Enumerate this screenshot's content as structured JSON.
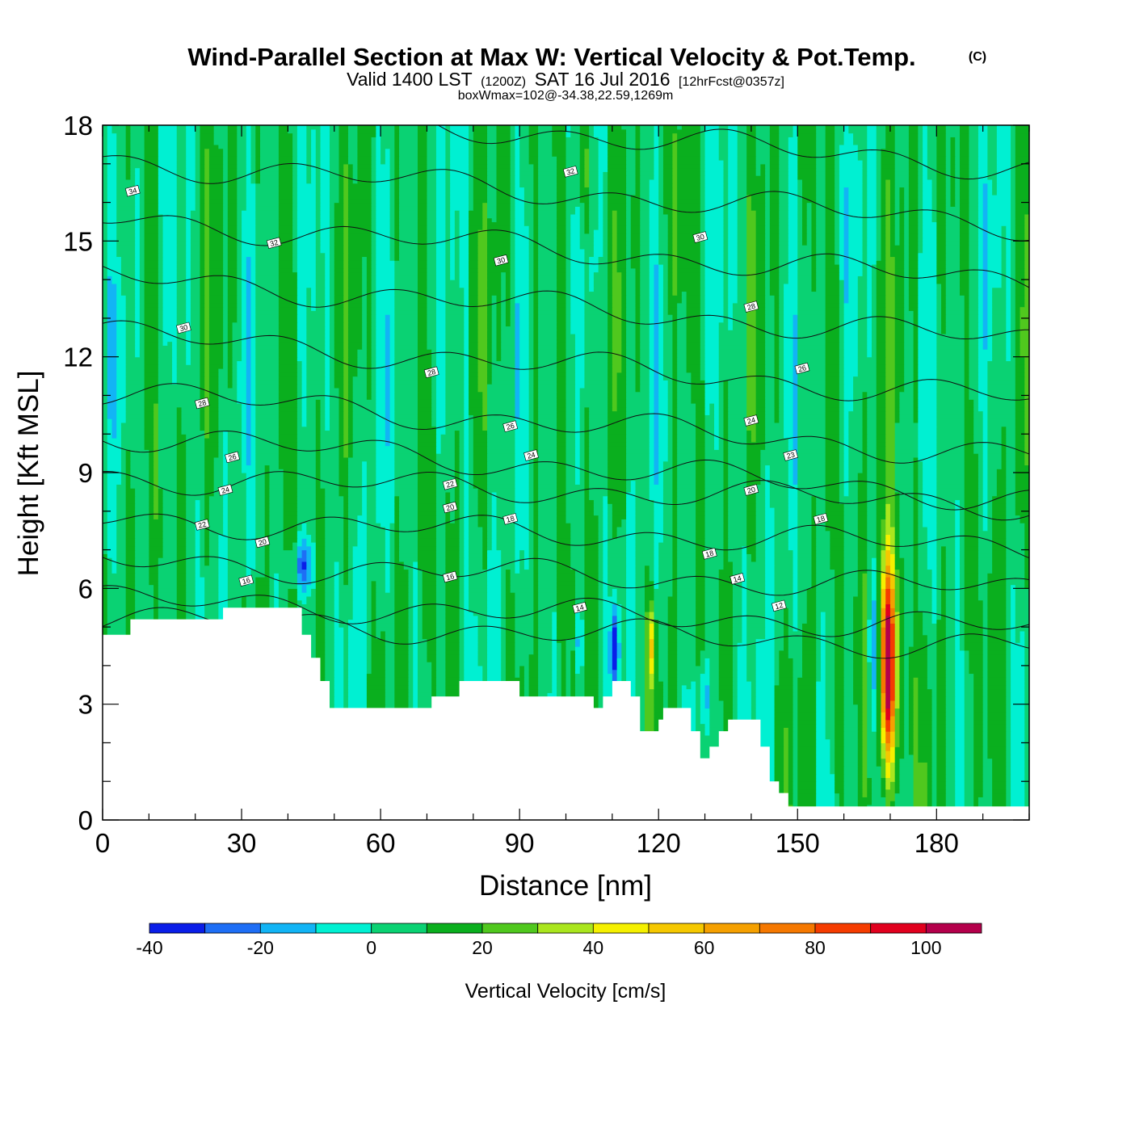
{
  "chart_data": {
    "type": "heatmap",
    "title": "Wind-Parallel Section at Max W: Vertical Velocity & Pot.Temp.",
    "title_mark": "(C)",
    "subtitle_parts": [
      "Valid 1400 LST",
      "(1200Z)",
      "SAT 16 Jul 2016",
      "[12hrFcst@0357z]"
    ],
    "subtitle2": "boxWmax=102@-34.38,22.59,1269m",
    "xlabel": "Distance [nm]",
    "ylabel": "Height [Kft MSL]",
    "xlim": [
      0,
      200
    ],
    "ylim": [
      0,
      18
    ],
    "xticks": [
      0,
      30,
      60,
      90,
      120,
      150,
      180
    ],
    "yticks": [
      0,
      3,
      6,
      9,
      12,
      15,
      18
    ],
    "colorbar": {
      "title": "Vertical Velocity [cm/s]",
      "levels": [
        -40,
        -30,
        -20,
        -10,
        0,
        10,
        20,
        30,
        40,
        50,
        60,
        70,
        80,
        90,
        100,
        110
      ],
      "colors": [
        "#0a1ee8",
        "#1e6ef5",
        "#12b4f5",
        "#00f0d2",
        "#0ad273",
        "#0aaf1e",
        "#50c81e",
        "#aae61e",
        "#f5f000",
        "#f5c800",
        "#f5a000",
        "#f57800",
        "#f53c00",
        "#e1001e",
        "#b4004b"
      ],
      "tick_labels": [
        "-40",
        "-20",
        "0",
        "20",
        "40",
        "60",
        "80",
        "100"
      ],
      "tick_values": [
        -40,
        -20,
        0,
        20,
        40,
        60,
        80,
        100
      ]
    },
    "terrain": [
      [
        0,
        4.8
      ],
      [
        6,
        4.8
      ],
      [
        6,
        5.2
      ],
      [
        26,
        5.2
      ],
      [
        26,
        5.5
      ],
      [
        43,
        5.5
      ],
      [
        43,
        4.8
      ],
      [
        45,
        4.8
      ],
      [
        45,
        4.2
      ],
      [
        47,
        4.2
      ],
      [
        47,
        3.6
      ],
      [
        49,
        3.6
      ],
      [
        49,
        2.9
      ],
      [
        71,
        2.9
      ],
      [
        71,
        3.2
      ],
      [
        77,
        3.2
      ],
      [
        77,
        3.6
      ],
      [
        90,
        3.6
      ],
      [
        90,
        3.2
      ],
      [
        106,
        3.2
      ],
      [
        106,
        2.9
      ],
      [
        108,
        2.9
      ],
      [
        108,
        3.2
      ],
      [
        110,
        3.2
      ],
      [
        110,
        3.6
      ],
      [
        114,
        3.6
      ],
      [
        114,
        3.2
      ],
      [
        116,
        3.2
      ],
      [
        116,
        2.3
      ],
      [
        120,
        2.3
      ],
      [
        120,
        2.6
      ],
      [
        121,
        2.6
      ],
      [
        121,
        2.9
      ],
      [
        127,
        2.9
      ],
      [
        127,
        2.3
      ],
      [
        129,
        2.3
      ],
      [
        129,
        1.6
      ],
      [
        131,
        1.6
      ],
      [
        131,
        1.9
      ],
      [
        133,
        1.9
      ],
      [
        133,
        2.3
      ],
      [
        135,
        2.3
      ],
      [
        135,
        2.6
      ],
      [
        142,
        2.6
      ],
      [
        142,
        1.9
      ],
      [
        144,
        1.9
      ],
      [
        144,
        1.0
      ],
      [
        146,
        1.0
      ],
      [
        146,
        0.7
      ],
      [
        148,
        0.7
      ],
      [
        148,
        0.35
      ],
      [
        200,
        0.35
      ]
    ],
    "wind_features": [
      {
        "x": 169.5,
        "y": 4.0,
        "peak": 102,
        "note": "boxWmax"
      },
      {
        "x": 118.5,
        "y": 4.5,
        "peak": 45
      },
      {
        "x": 110.5,
        "y": 4.5,
        "peak": -35
      },
      {
        "x": 43.5,
        "y": 6.6,
        "peak": -28
      },
      {
        "x": 166.5,
        "y": 4.5,
        "peak": -25
      }
    ],
    "contour_levels": [
      12,
      14,
      16,
      18,
      20,
      22,
      24,
      26,
      28,
      30,
      32,
      34
    ],
    "contour_labels": [
      {
        "text": "34",
        "x": 6.5,
        "y": 16.3
      },
      {
        "text": "32",
        "x": 37,
        "y": 14.95
      },
      {
        "text": "32",
        "x": 101,
        "y": 16.8
      },
      {
        "text": "30",
        "x": 17.5,
        "y": 12.75
      },
      {
        "text": "30",
        "x": 86,
        "y": 14.5
      },
      {
        "text": "30",
        "x": 129,
        "y": 15.1
      },
      {
        "text": "28",
        "x": 21.5,
        "y": 10.8
      },
      {
        "text": "28",
        "x": 71,
        "y": 11.6
      },
      {
        "text": "28",
        "x": 140,
        "y": 13.3
      },
      {
        "text": "26",
        "x": 28,
        "y": 9.4
      },
      {
        "text": "26",
        "x": 88,
        "y": 10.2
      },
      {
        "text": "26",
        "x": 151,
        "y": 11.7
      },
      {
        "text": "24",
        "x": 26.5,
        "y": 8.55
      },
      {
        "text": "24",
        "x": 92.5,
        "y": 9.45
      },
      {
        "text": "24",
        "x": 140,
        "y": 10.35
      },
      {
        "text": "23",
        "x": 148.5,
        "y": 9.45
      },
      {
        "text": "22",
        "x": 21.5,
        "y": 7.65
      },
      {
        "text": "22",
        "x": 75,
        "y": 8.7
      },
      {
        "text": "20",
        "x": 34.5,
        "y": 7.2
      },
      {
        "text": "20",
        "x": 75,
        "y": 8.1
      },
      {
        "text": "20",
        "x": 140,
        "y": 8.55
      },
      {
        "text": "18",
        "x": 88,
        "y": 7.8
      },
      {
        "text": "18",
        "x": 155,
        "y": 7.8
      },
      {
        "text": "18",
        "x": 131,
        "y": 6.9
      },
      {
        "text": "16",
        "x": 31,
        "y": 6.2
      },
      {
        "text": "16",
        "x": 75,
        "y": 6.3
      },
      {
        "text": "14",
        "x": 103,
        "y": 5.5
      },
      {
        "text": "14",
        "x": 137,
        "y": 6.25
      },
      {
        "text": "12",
        "x": 146,
        "y": 5.55
      }
    ]
  }
}
